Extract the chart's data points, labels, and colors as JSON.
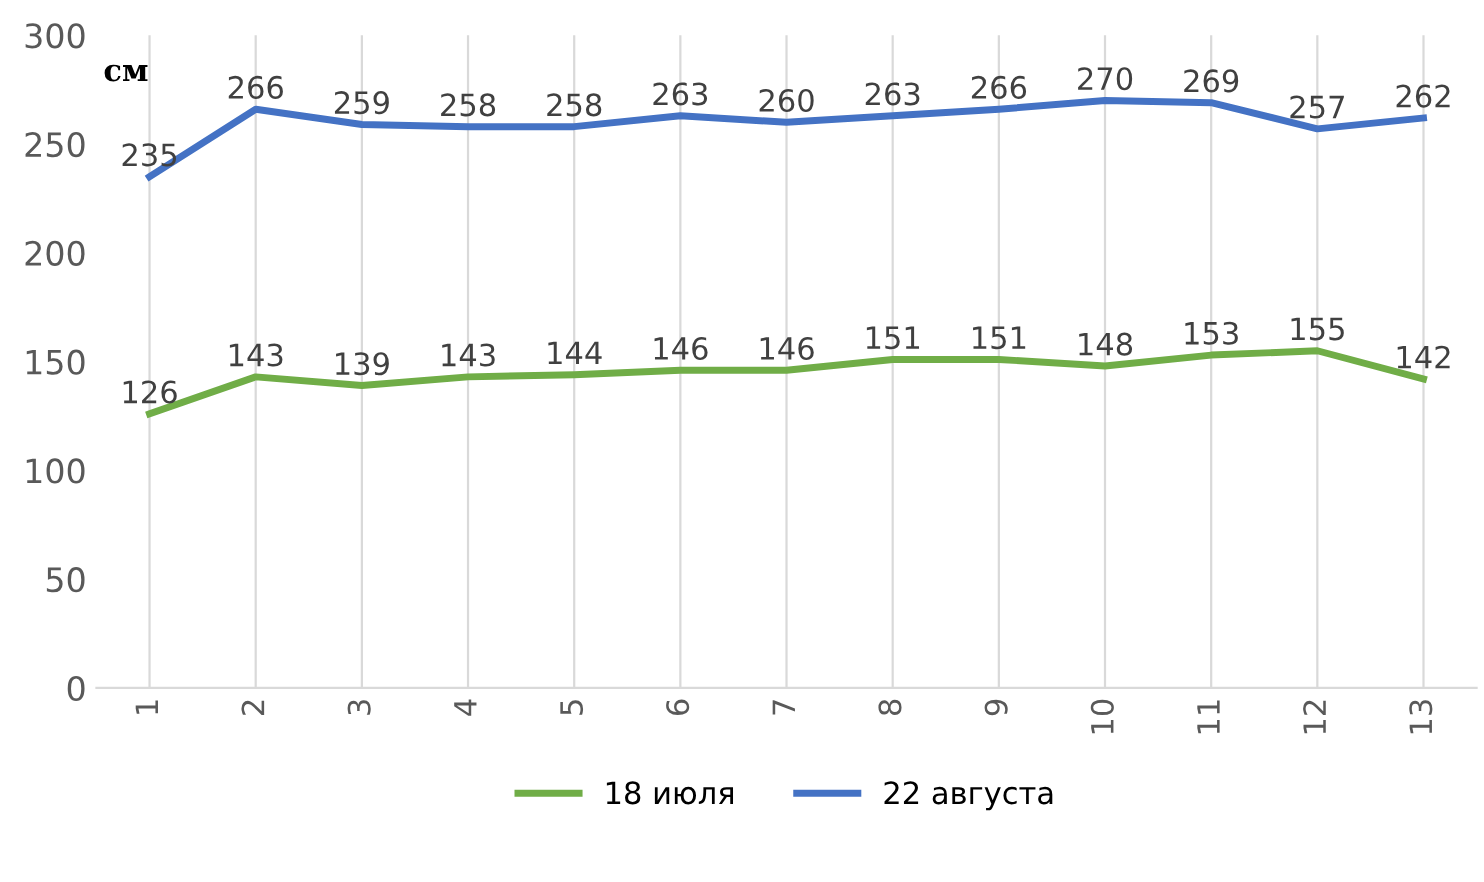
{
  "chart_data": {
    "type": "line",
    "categories": [
      "1",
      "2",
      "3",
      "4",
      "5",
      "6",
      "7",
      "8",
      "9",
      "10",
      "11",
      "12",
      "13"
    ],
    "series": [
      {
        "name": "18 июля",
        "color": "#70ad47",
        "values": [
          126,
          143,
          139,
          143,
          144,
          146,
          146,
          151,
          151,
          148,
          153,
          155,
          142
        ]
      },
      {
        "name": "22 августа",
        "color": "#4472c4",
        "values": [
          235,
          266,
          259,
          258,
          258,
          263,
          260,
          263,
          266,
          270,
          269,
          257,
          262
        ]
      }
    ],
    "ylim": [
      0,
      300
    ],
    "yticks": [
      0,
      50,
      100,
      150,
      200,
      250,
      300
    ],
    "grid": "x",
    "legend": "bottom",
    "data_labels": true,
    "line_style": "solid",
    "annotations": [
      "см"
    ]
  }
}
